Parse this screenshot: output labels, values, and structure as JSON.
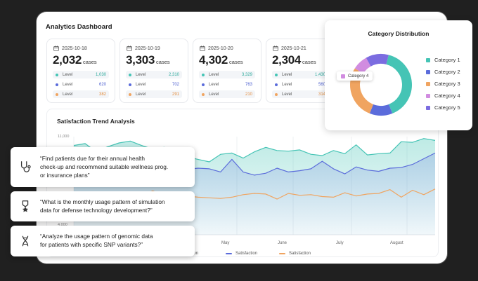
{
  "dashboard": {
    "title": "Analytics Dashboard",
    "unit": "cases",
    "level_label": "Level",
    "stats": [
      {
        "date": "2025-10-18",
        "value": "2,032",
        "levels": [
          "1,030",
          "620",
          "382"
        ]
      },
      {
        "date": "2025-10-19",
        "value": "3,303",
        "levels": [
          "2,310",
          "702",
          "291"
        ]
      },
      {
        "date": "2025-10-20",
        "value": "4,302",
        "levels": [
          "3,329",
          "763",
          "210"
        ]
      },
      {
        "date": "2025-10-21",
        "value": "2,304",
        "levels": [
          "1,430",
          "560",
          "314"
        ]
      }
    ],
    "level_colors": [
      "#45c4b5",
      "#5b6cdb",
      "#f0a460"
    ]
  },
  "chart_data": [
    {
      "type": "area",
      "title": "Satisfaction Trend Analysis",
      "x_ticks": [
        "May",
        "June",
        "July",
        "August"
      ],
      "y_ticks": [
        "11,000",
        "4,000"
      ],
      "ylim": [
        4000,
        11000
      ],
      "grid": true,
      "legend": [
        "Satisfaction",
        "Satisfaction",
        "Satisfaction"
      ],
      "series": [
        {
          "name": "Satisfaction",
          "color": "#45c4b5",
          "values": [
            10300,
            10450,
            9800,
            10200,
            10500,
            10650,
            10300,
            10000,
            10150,
            9950,
            9400,
            9200,
            9000,
            9600,
            9700,
            9300,
            9800,
            10150,
            9900,
            9850,
            9950,
            9600,
            9500,
            9900,
            9650,
            10350,
            9550,
            9650,
            9700,
            10600,
            10550,
            10850,
            10700
          ]
        },
        {
          "name": "Satisfaction",
          "color": "#5b6cdb",
          "values": [
            9200,
            9000,
            9200,
            8950,
            8500,
            8750,
            8900,
            8600,
            8500,
            8300,
            8400,
            8500,
            8450,
            8200,
            9200,
            8200,
            7950,
            8100,
            8500,
            8200,
            8300,
            8450,
            9050,
            8450,
            8050,
            8600,
            8350,
            8250,
            8500,
            8550,
            8800,
            9250,
            9700
          ]
        },
        {
          "name": "Satisfaction",
          "color": "#f0a460",
          "values": [
            6600,
            6400,
            6050,
            6350,
            6000,
            6500,
            6350,
            6700,
            6300,
            6050,
            6300,
            6200,
            6150,
            6100,
            6200,
            6400,
            6500,
            6450,
            6050,
            6500,
            6350,
            6400,
            6250,
            6200,
            6550,
            6300,
            6450,
            6500,
            6800,
            6200,
            6750,
            6400,
            6850
          ]
        }
      ]
    },
    {
      "type": "pie",
      "title": "Category Distribution",
      "categories": [
        "Category 1",
        "Category 2",
        "Category 3",
        "Category 4",
        "Category 5"
      ],
      "values": [
        40,
        12,
        28,
        8,
        12
      ],
      "colors": [
        "#45c4b5",
        "#5b6cdb",
        "#f0a460",
        "#d18ce0",
        "#7b6ce0"
      ],
      "tooltip": "Category 4"
    }
  ],
  "queries": [
    {
      "icon": "stethoscope-icon",
      "text": "“Find patients due for their annual health\ncheck-up and recommend suitable wellness prog.\nor insurance plans”"
    },
    {
      "icon": "military-medal-icon",
      "text": "“What is the monthly usage pattern of simulation\ndata for defense technology development?”"
    },
    {
      "icon": "dna-icon",
      "text": "“Analyze the usage pattern of genomic data\nfor patients with specific SNP variants?”"
    }
  ]
}
